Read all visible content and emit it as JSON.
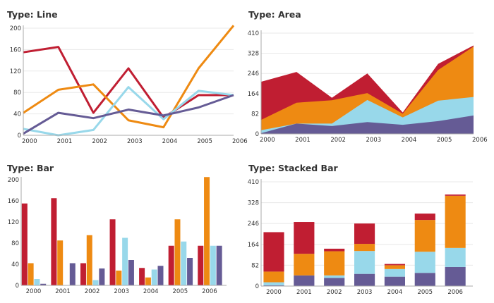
{
  "colors": {
    "s1": "#c01e32",
    "s2": "#ee8a12",
    "s3": "#98d8ea",
    "s4": "#655b95",
    "grid": "#e8e8e8",
    "axis": "#aaaaaa"
  },
  "chart_data": [
    {
      "type": "line",
      "title": "Type: Line",
      "categories": [
        "2000",
        "2001",
        "2002",
        "2003",
        "2004",
        "2005",
        "2006"
      ],
      "ylim": [
        0,
        200
      ],
      "yticks": [
        "0",
        "40",
        "80",
        "120",
        "160",
        "200"
      ],
      "grid": true,
      "series": [
        {
          "values": [
            155,
            165,
            42,
            125,
            33,
            75,
            75
          ]
        },
        {
          "values": [
            42,
            85,
            95,
            28,
            15,
            125,
            205
          ]
        },
        {
          "values": [
            12,
            0,
            10,
            90,
            30,
            83,
            75
          ]
        },
        {
          "values": [
            3,
            42,
            32,
            48,
            37,
            52,
            75
          ]
        }
      ]
    },
    {
      "type": "area",
      "title": "Type: Area",
      "categories": [
        "2000",
        "2001",
        "2002",
        "2003",
        "2004",
        "2005",
        "2006"
      ],
      "ylim": [
        0,
        410
      ],
      "yticks": [
        "0",
        "82",
        "164",
        "246",
        "328",
        "410"
      ],
      "grid": true,
      "stacked": true,
      "series": [
        {
          "values": [
            155,
            125,
            10,
            80,
            5,
            25,
            5
          ]
        },
        {
          "values": [
            42,
            85,
            95,
            28,
            15,
            125,
            205
          ]
        },
        {
          "values": [
            12,
            0,
            10,
            90,
            30,
            83,
            75
          ]
        },
        {
          "values": [
            3,
            42,
            32,
            48,
            37,
            52,
            75
          ]
        }
      ]
    },
    {
      "type": "bar",
      "title": "Type: Bar",
      "categories": [
        "2000",
        "2001",
        "2002",
        "2003",
        "2004",
        "2005",
        "2006"
      ],
      "ylim": [
        0,
        200
      ],
      "yticks": [
        "0",
        "40",
        "80",
        "120",
        "160",
        "200"
      ],
      "grid": false,
      "series": [
        {
          "values": [
            155,
            165,
            42,
            125,
            33,
            75,
            75
          ]
        },
        {
          "values": [
            42,
            85,
            95,
            28,
            15,
            125,
            205
          ]
        },
        {
          "values": [
            12,
            0,
            10,
            90,
            30,
            83,
            75
          ]
        },
        {
          "values": [
            3,
            42,
            32,
            48,
            37,
            52,
            75
          ]
        }
      ]
    },
    {
      "type": "bar",
      "stacked": true,
      "title": "Type: Stacked Bar",
      "categories": [
        "2000",
        "2001",
        "2002",
        "2003",
        "2004",
        "2005",
        "2006"
      ],
      "ylim": [
        0,
        410
      ],
      "yticks": [
        "0",
        "82",
        "164",
        "246",
        "328",
        "410"
      ],
      "grid": true,
      "series": [
        {
          "values": [
            155,
            125,
            10,
            80,
            5,
            25,
            5
          ]
        },
        {
          "values": [
            42,
            85,
            95,
            28,
            15,
            125,
            205
          ]
        },
        {
          "values": [
            12,
            0,
            10,
            90,
            30,
            83,
            75
          ]
        },
        {
          "values": [
            3,
            42,
            32,
            48,
            37,
            52,
            75
          ]
        }
      ]
    }
  ]
}
